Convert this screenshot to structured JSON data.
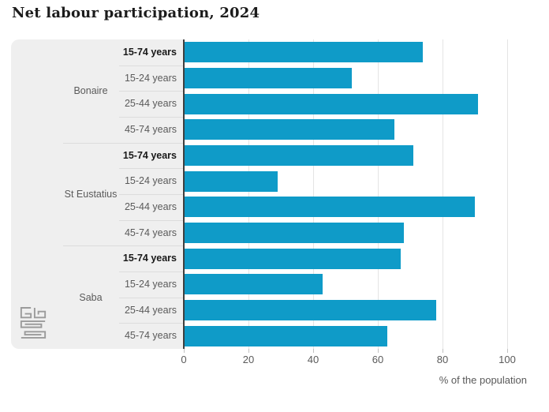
{
  "title": "Net labour participation, 2024",
  "chart_data": {
    "type": "bar",
    "orientation": "horizontal",
    "title": "Net labour participation, 2024",
    "xlabel": "% of the population",
    "xlim": [
      0,
      100
    ],
    "x_ticks": [
      "0",
      "20",
      "40",
      "60",
      "80",
      "100"
    ],
    "grid": true,
    "categories": [
      "15-74 years",
      "15-24 years",
      "25-44 years",
      "45-74 years"
    ],
    "emphasized_category": "15-74 years",
    "series": [
      {
        "name": "Bonaire",
        "values": [
          74,
          52,
          91,
          65
        ]
      },
      {
        "name": "St Eustatius",
        "values": [
          71,
          29,
          90,
          68
        ]
      },
      {
        "name": "Saba",
        "values": [
          67,
          43,
          78,
          63
        ]
      }
    ]
  },
  "colors": {
    "bar": "#0f9bc8",
    "label_panel": "#efefef",
    "axis_line": "#3f3f3f",
    "gridline": "#e4e4e4",
    "text_muted": "#5a5a5a",
    "text_strong": "#191919"
  },
  "logo": {
    "alt": "CBS logo"
  }
}
